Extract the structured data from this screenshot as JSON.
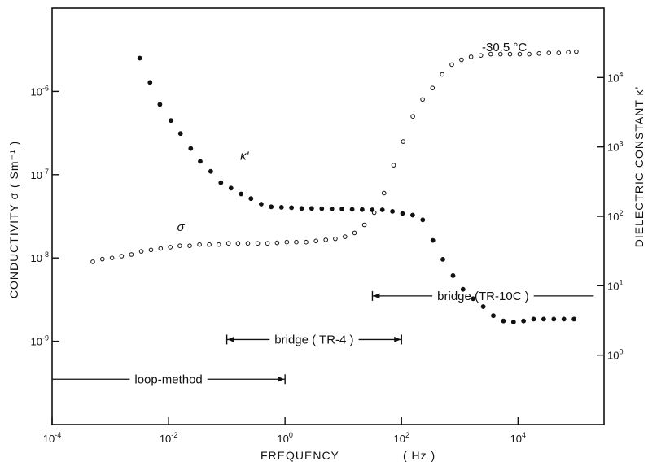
{
  "chart_data": {
    "type": "scatter",
    "title": "",
    "temperature_label": "-30.5 °C",
    "xlabel": "FREQUENCY",
    "xunit": "( Hz )",
    "ylabel_left": "CONDUCTIVITY σ  ( Sm⁻¹ )",
    "ylabel_right": "DIELECTRIC CONSTANT κ'",
    "x_scale": "log",
    "xlim": [
      0.0001,
      300000
    ],
    "x_ticks": [
      {
        "value": 0.0001,
        "base": "10",
        "exp": "-4"
      },
      {
        "value": 0.01,
        "base": "10",
        "exp": "-2"
      },
      {
        "value": 1,
        "base": "10",
        "exp": "0"
      },
      {
        "value": 100,
        "base": "10",
        "exp": "2"
      },
      {
        "value": 10000,
        "base": "10",
        "exp": "4"
      }
    ],
    "y_left_scale": "log",
    "y_left_lim": [
      1e-10,
      1e-05
    ],
    "y_left_ticks": [
      {
        "value": 1e-06,
        "base": "10",
        "exp": "-6"
      },
      {
        "value": 1e-07,
        "base": "10",
        "exp": "-7"
      },
      {
        "value": 1e-08,
        "base": "10",
        "exp": "-8"
      },
      {
        "value": 1e-09,
        "base": "10",
        "exp": "-9"
      }
    ],
    "y_right_scale": "log",
    "y_right_lim": [
      0.1,
      100000
    ],
    "y_right_ticks": [
      {
        "value": 10000,
        "base": "10",
        "exp": "4"
      },
      {
        "value": 1000,
        "base": "10",
        "exp": "3"
      },
      {
        "value": 100,
        "base": "10",
        "exp": "2"
      },
      {
        "value": 10,
        "base": "10",
        "exp": "1"
      },
      {
        "value": 1,
        "base": "10",
        "exp": "0"
      }
    ],
    "grid": false,
    "series": [
      {
        "name": "κ'",
        "axis": "right",
        "marker": "filled-circle",
        "x": [
          0.0032,
          0.0048,
          0.0071,
          0.011,
          0.016,
          0.024,
          0.035,
          0.053,
          0.079,
          0.118,
          0.176,
          0.26,
          0.39,
          0.58,
          0.87,
          1.29,
          1.93,
          2.87,
          4.28,
          6.38,
          9.5,
          14.2,
          21.1,
          31.4,
          46.9,
          69.8,
          104,
          155,
          231,
          345,
          513,
          765,
          1139,
          1697,
          2528,
          3767,
          5613,
          8360,
          12450,
          18550,
          27640,
          41170,
          61350,
          91400
        ],
        "y": [
          19000,
          8500,
          4100,
          2400,
          1560,
          950,
          620,
          445,
          305,
          255,
          210,
          180,
          150,
          137,
          135,
          133,
          130,
          130,
          129,
          128,
          128,
          126,
          125,
          124,
          124,
          118,
          110,
          104,
          89,
          45,
          24,
          14,
          8.9,
          6.5,
          5.0,
          3.7,
          3.1,
          3.0,
          3.1,
          3.3,
          3.3,
          3.3,
          3.3,
          3.3
        ]
      },
      {
        "name": "σ",
        "axis": "left",
        "marker": "open-circle",
        "x": [
          0.0005,
          0.00073,
          0.00107,
          0.00156,
          0.0023,
          0.0034,
          0.005,
          0.0073,
          0.0107,
          0.0156,
          0.023,
          0.034,
          0.05,
          0.073,
          0.107,
          0.156,
          0.23,
          0.34,
          0.5,
          0.73,
          1.07,
          1.56,
          2.3,
          3.4,
          5.0,
          7.3,
          10.7,
          15.6,
          23,
          34,
          50,
          73,
          107,
          156,
          230,
          340,
          500,
          730,
          1070,
          1560,
          2300,
          3400,
          5000,
          7300,
          10700,
          15600,
          23000,
          34000,
          50000,
          73000,
          100000
        ],
        "y": [
          9e-09,
          9.7e-09,
          1e-08,
          1.05e-08,
          1.1e-08,
          1.2e-08,
          1.25e-08,
          1.3e-08,
          1.35e-08,
          1.4e-08,
          1.4e-08,
          1.45e-08,
          1.45e-08,
          1.45e-08,
          1.5e-08,
          1.5e-08,
          1.5e-08,
          1.5e-08,
          1.5e-08,
          1.52e-08,
          1.55e-08,
          1.55e-08,
          1.55e-08,
          1.6e-08,
          1.65e-08,
          1.7e-08,
          1.8e-08,
          2e-08,
          2.5e-08,
          3.5e-08,
          6e-08,
          1.3e-07,
          2.5e-07,
          5e-07,
          8e-07,
          1.1e-06,
          1.6e-06,
          2.1e-06,
          2.4e-06,
          2.6e-06,
          2.7e-06,
          2.8e-06,
          2.8e-06,
          2.8e-06,
          2.8e-06,
          2.8e-06,
          2.85e-06,
          2.9e-06,
          2.9e-06,
          2.95e-06,
          3e-06
        ]
      }
    ],
    "series_labels": [
      {
        "text": "κ'",
        "x": 0.17,
        "y_right": 650
      },
      {
        "text": "σ",
        "x": 0.014,
        "y_left": 2.1e-08
      }
    ],
    "ranges": [
      {
        "label": "loop-method",
        "x_start": 0.0001,
        "x_end": 1,
        "y_left": 3.5e-10,
        "left_arrow": false,
        "right_arrow": true
      },
      {
        "label": "bridge ( TR-4 )",
        "x_start": 0.1,
        "x_end": 100,
        "y_left": 1.05e-09,
        "left_arrow": true,
        "right_arrow": true
      },
      {
        "label": "bridge (TR-10C )",
        "x_start": 31.6,
        "x_end": 200000,
        "y_left": 3.5e-09,
        "left_arrow": true,
        "right_arrow": false
      }
    ]
  }
}
